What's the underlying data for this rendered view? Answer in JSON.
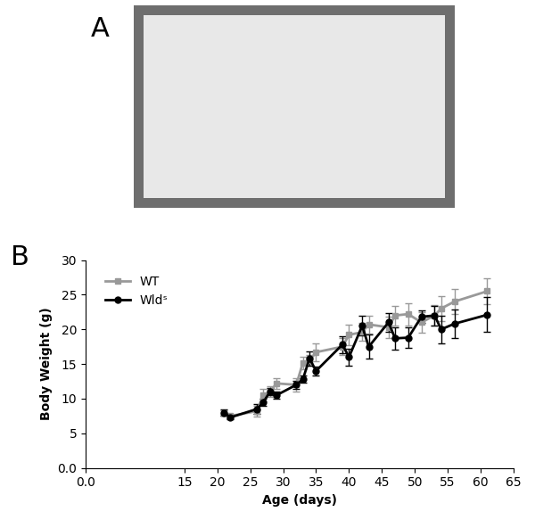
{
  "panel_labels": [
    "A",
    "B"
  ],
  "chart_data": {
    "type": "line",
    "x_label": "Age (days)",
    "y_label": "Body Weight (g)",
    "x": [
      21,
      22,
      26,
      27,
      28,
      29,
      32,
      33,
      34,
      35,
      39,
      40,
      42,
      43,
      46,
      47,
      49,
      51,
      53,
      54,
      56,
      61
    ],
    "series": [
      {
        "name": "WT",
        "color": "#999999",
        "marker": "square",
        "values": [
          7.9,
          7.5,
          8.2,
          10.5,
          11.0,
          12.2,
          12.0,
          15.2,
          15.5,
          16.7,
          17.5,
          19.2,
          19.6,
          20.7,
          20.3,
          22.0,
          22.2,
          21.0,
          22.0,
          23.0,
          24.0,
          25.5
        ],
        "errors": [
          0.4,
          0.3,
          0.8,
          0.9,
          0.8,
          0.8,
          1.0,
          0.9,
          0.8,
          1.3,
          1.2,
          1.5,
          1.3,
          1.3,
          1.5,
          1.4,
          1.6,
          1.5,
          1.5,
          1.8,
          1.8,
          1.9
        ]
      },
      {
        "name": "Wldˢ",
        "color": "#000000",
        "marker": "circle",
        "values": [
          8.0,
          7.3,
          8.5,
          9.5,
          11.0,
          10.5,
          12.0,
          12.8,
          15.8,
          14.0,
          17.8,
          16.0,
          20.5,
          17.5,
          21.0,
          18.7,
          18.8,
          21.8,
          22.0,
          20.0,
          20.8,
          22.1
        ],
        "errors": [
          0.5,
          0.3,
          0.7,
          0.5,
          0.5,
          0.5,
          0.6,
          0.5,
          1.0,
          0.6,
          1.2,
          1.2,
          1.4,
          1.7,
          1.3,
          1.6,
          1.5,
          0.9,
          1.4,
          2.0,
          2.0,
          2.5
        ]
      }
    ],
    "xlim": [
      0,
      65
    ],
    "xticks": [
      {
        "value": 0,
        "label": "0.0"
      },
      15,
      20,
      25,
      30,
      35,
      40,
      45,
      50,
      55,
      60,
      65
    ],
    "ylim": [
      0,
      30
    ],
    "yticks": [
      {
        "value": 0,
        "label": "0.0"
      },
      5,
      10,
      15,
      20,
      25,
      30
    ],
    "legend": "upper left",
    "grid": false
  }
}
